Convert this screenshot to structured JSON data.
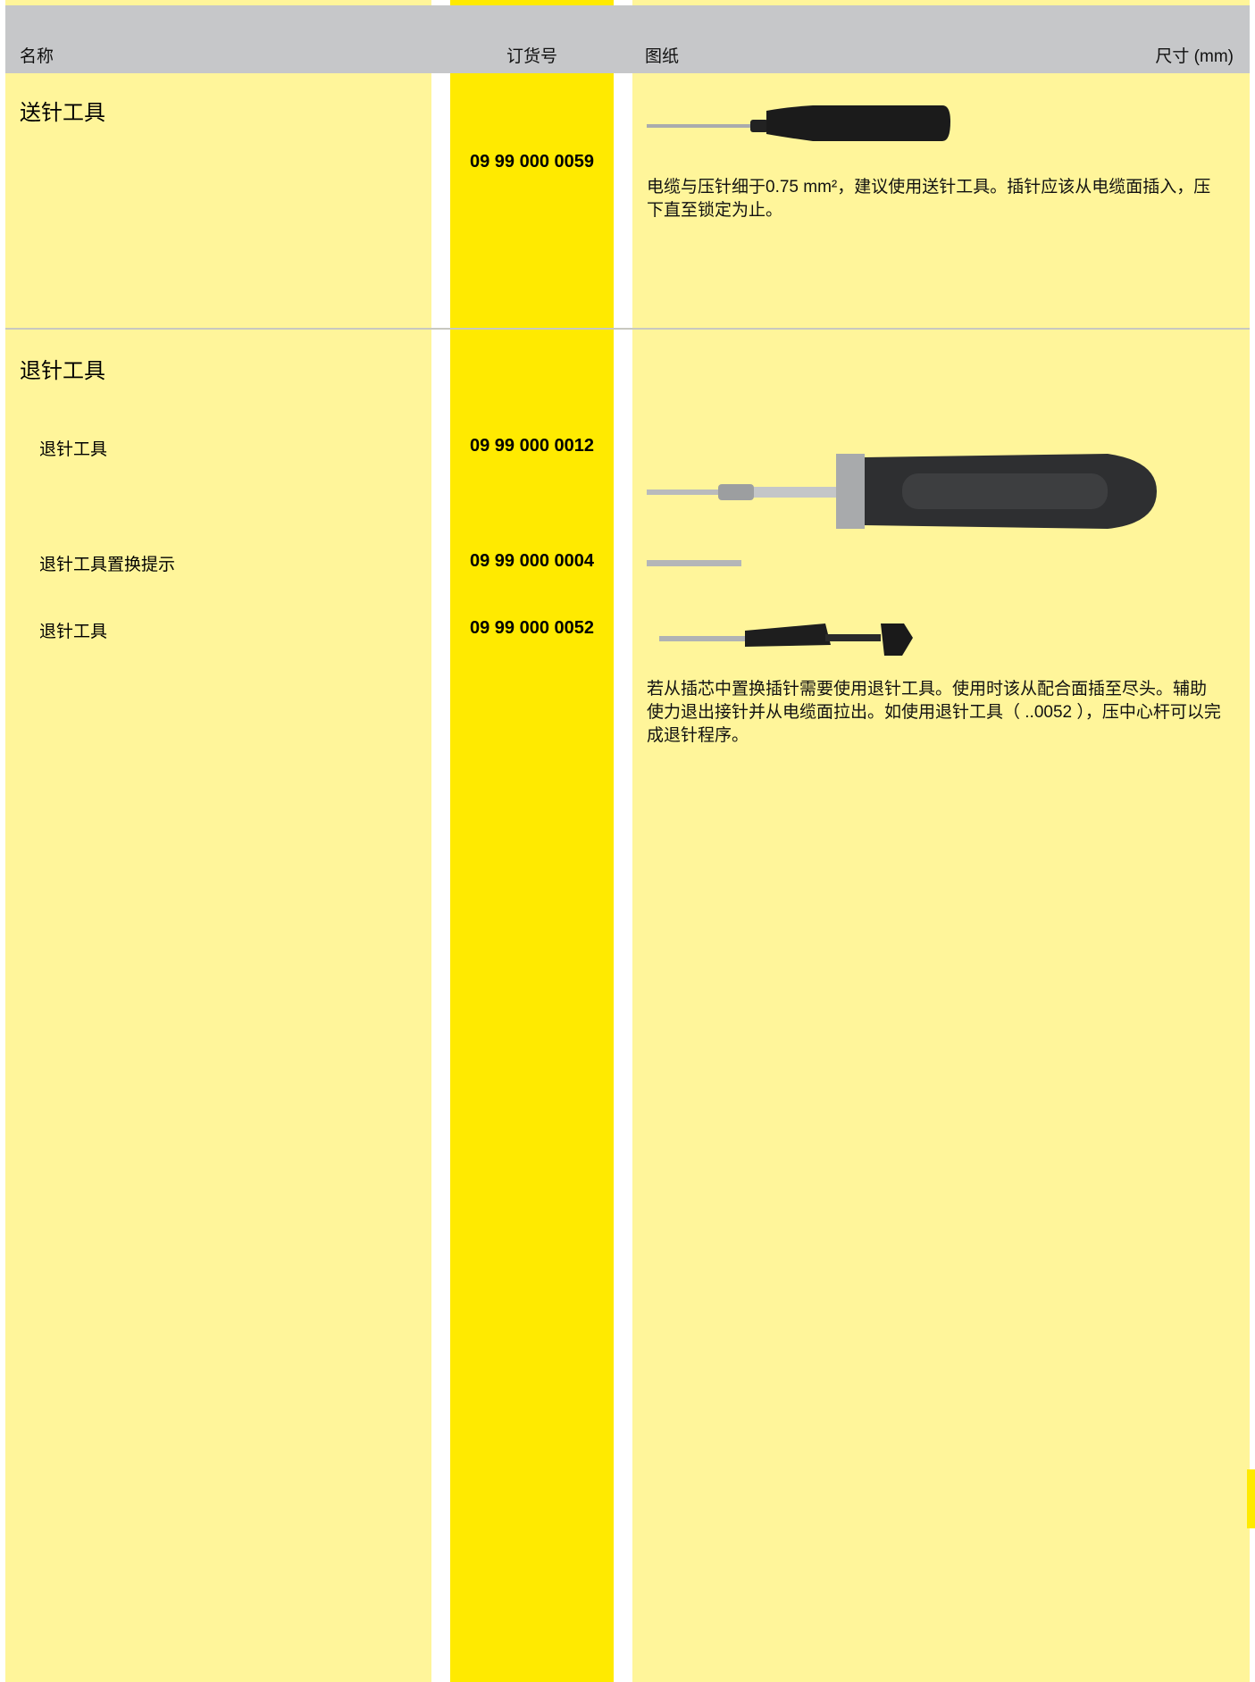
{
  "header": {
    "name": "名称",
    "order_no": "订货号",
    "drawing": "图纸",
    "dimensions": "尺寸 (mm)"
  },
  "sections": [
    {
      "title": "送针工具",
      "items": [
        {
          "order_no": "09 99 000 0059"
        }
      ],
      "description": "电缆与压针细于0.75 mm²，建议使用送针工具。插针应该从电缆面插入，压下直至锁定为止。"
    },
    {
      "title": "退针工具",
      "items": [
        {
          "name": "退针工具",
          "order_no": "09 99 000 0012"
        },
        {
          "name": "退针工具置换提示",
          "order_no": "09 99 000 0004"
        },
        {
          "name": "退针工具",
          "order_no": "09 99 000 0052"
        }
      ],
      "description": "若从插芯中置换插针需要使用退针工具。使用时该从配合面插至尽头。辅助使力退出接针并从电缆面拉出。如使用退针工具（ ..0052 ），压中心杆可以完成退针程序。"
    }
  ]
}
